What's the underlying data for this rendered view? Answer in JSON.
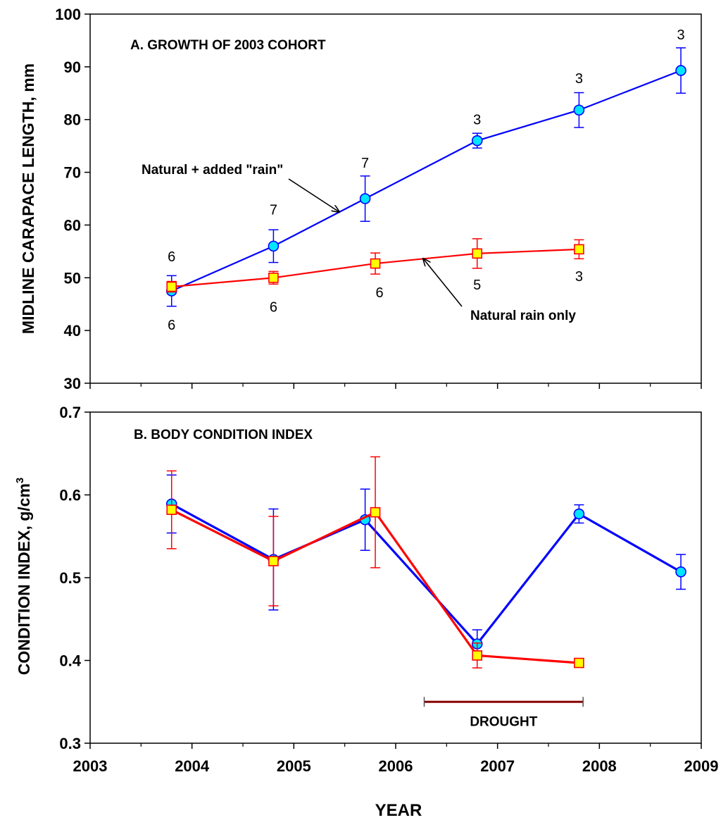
{
  "chart_data": [
    {
      "type": "line",
      "title": "A. GROWTH OF 2003 COHORT",
      "ylabel": "MIDLINE CARAPACE LENGTH,  mm",
      "xlabel": "",
      "xlim": [
        2003,
        2009
      ],
      "ylim": [
        30,
        100
      ],
      "xticks": [
        2003,
        2004,
        2005,
        2006,
        2007,
        2008,
        2009
      ],
      "yticks": [
        30,
        40,
        50,
        60,
        70,
        80,
        90,
        100
      ],
      "series": [
        {
          "name": "Natural + added \"rain\"",
          "color": "#0000ff",
          "marker": "circle",
          "marker_fill": "#00e5ff",
          "points": [
            {
              "x": 2003.8,
              "y": 47.5,
              "err": 2.9,
              "n": "6"
            },
            {
              "x": 2004.8,
              "y": 56.0,
              "err": 3.1,
              "n": "7"
            },
            {
              "x": 2005.7,
              "y": 65.0,
              "err": 4.3,
              "n": "7"
            },
            {
              "x": 2006.8,
              "y": 76.0,
              "err": 1.4,
              "n": "3"
            },
            {
              "x": 2007.8,
              "y": 81.8,
              "err": 3.3,
              "n": "3"
            },
            {
              "x": 2008.8,
              "y": 89.3,
              "err": 4.3,
              "n": "3"
            }
          ]
        },
        {
          "name": "Natural rain only",
          "color": "#ff0000",
          "marker": "square",
          "marker_fill": "#ffff00",
          "points": [
            {
              "x": 2003.8,
              "y": 48.3,
              "err": 1.0,
              "n": "6"
            },
            {
              "x": 2004.8,
              "y": 50.0,
              "err": 1.2,
              "n": "6"
            },
            {
              "x": 2005.8,
              "y": 52.7,
              "err": 2.0,
              "n": "6"
            },
            {
              "x": 2006.8,
              "y": 54.6,
              "err": 2.8,
              "n": "5"
            },
            {
              "x": 2007.8,
              "y": 55.4,
              "err": 1.8,
              "n": "3"
            }
          ]
        }
      ],
      "annotations": [
        {
          "text": "Natural + added \"rain\"",
          "series": 0
        },
        {
          "text": "Natural rain only",
          "series": 1
        }
      ]
    },
    {
      "type": "line",
      "title": "B. BODY CONDITION INDEX",
      "ylabel": "CONDITION INDEX, g/cm",
      "ylabel_superscript": "3",
      "xlabel": "YEAR",
      "xlim": [
        2003,
        2009
      ],
      "ylim": [
        0.3,
        0.7
      ],
      "xticks": [
        2003,
        2004,
        2005,
        2006,
        2007,
        2008,
        2009
      ],
      "yticks": [
        0.3,
        0.4,
        0.5,
        0.6,
        0.7
      ],
      "ytick_labels": [
        "0.3",
        "0.4",
        "0.5",
        "0.6",
        "0.7"
      ],
      "series": [
        {
          "color": "#0000ff",
          "marker": "circle",
          "marker_fill": "#00e5ff",
          "points": [
            {
              "x": 2003.8,
              "y": 0.589,
              "err": 0.035
            },
            {
              "x": 2004.8,
              "y": 0.522,
              "err": 0.061
            },
            {
              "x": 2005.7,
              "y": 0.57,
              "err": 0.037
            },
            {
              "x": 2006.8,
              "y": 0.42,
              "err": 0.017
            },
            {
              "x": 2007.8,
              "y": 0.577,
              "err": 0.011
            },
            {
              "x": 2008.8,
              "y": 0.507,
              "err": 0.021
            }
          ]
        },
        {
          "color": "#ff0000",
          "marker": "square",
          "marker_fill": "#ffff00",
          "points": [
            {
              "x": 2003.8,
              "y": 0.582,
              "err": 0.047
            },
            {
              "x": 2004.8,
              "y": 0.52,
              "err": 0.054
            },
            {
              "x": 2005.8,
              "y": 0.579,
              "err": 0.067
            },
            {
              "x": 2006.8,
              "y": 0.406,
              "err": 0.015
            },
            {
              "x": 2007.8,
              "y": 0.397,
              "err": 0.005
            }
          ]
        }
      ],
      "span": {
        "label": "DROUGHT",
        "x_start": 2006.28,
        "x_end": 2007.84,
        "y": 0.35,
        "color": "#8b0000"
      }
    }
  ]
}
